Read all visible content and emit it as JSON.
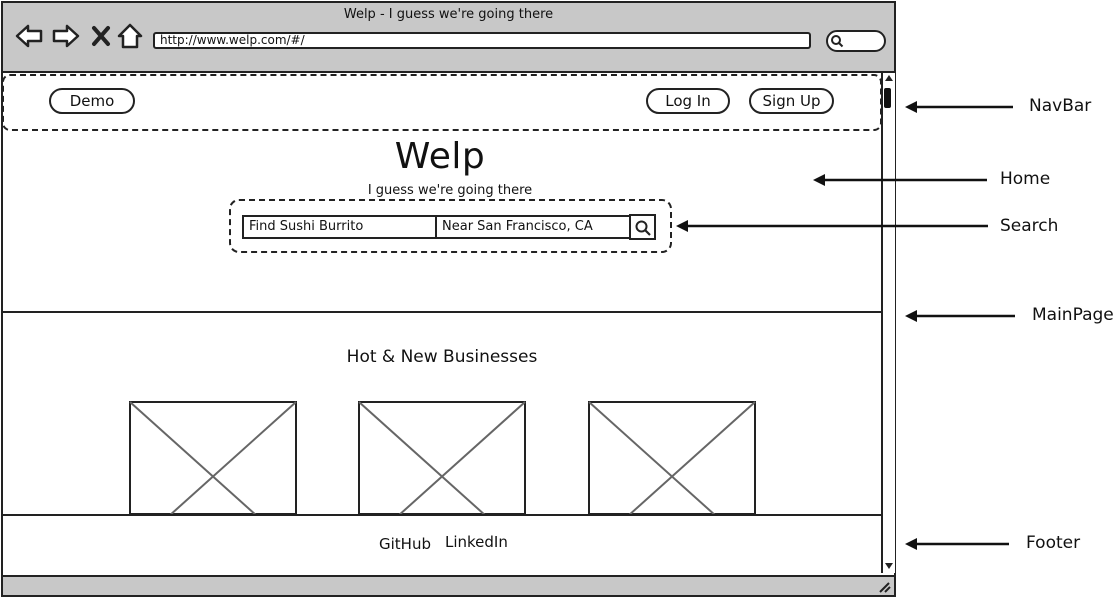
{
  "window": {
    "title": "Welp - I guess we're going there",
    "url": "http://www.welp.com/#/",
    "toolbar_icons": [
      "back-icon",
      "forward-icon",
      "close-icon",
      "home-icon"
    ],
    "search_icon": "search-icon"
  },
  "navbar": {
    "demo_label": "Demo",
    "login_label": "Log In",
    "signup_label": "Sign Up"
  },
  "home": {
    "title": "Welp",
    "tagline": "I guess we're going there",
    "find_value": "Find Sushi Burrito",
    "near_value": "Near San Francisco, CA",
    "search_icon": "search-icon"
  },
  "main": {
    "section_title": "Hot & New Businesses",
    "business_images": [
      "image-placeholder",
      "image-placeholder",
      "image-placeholder"
    ]
  },
  "footer": {
    "links": [
      "GitHub",
      "LinkedIn"
    ]
  },
  "annotations": [
    "NavBar",
    "Home",
    "Search",
    "MainPage",
    "Footer"
  ]
}
